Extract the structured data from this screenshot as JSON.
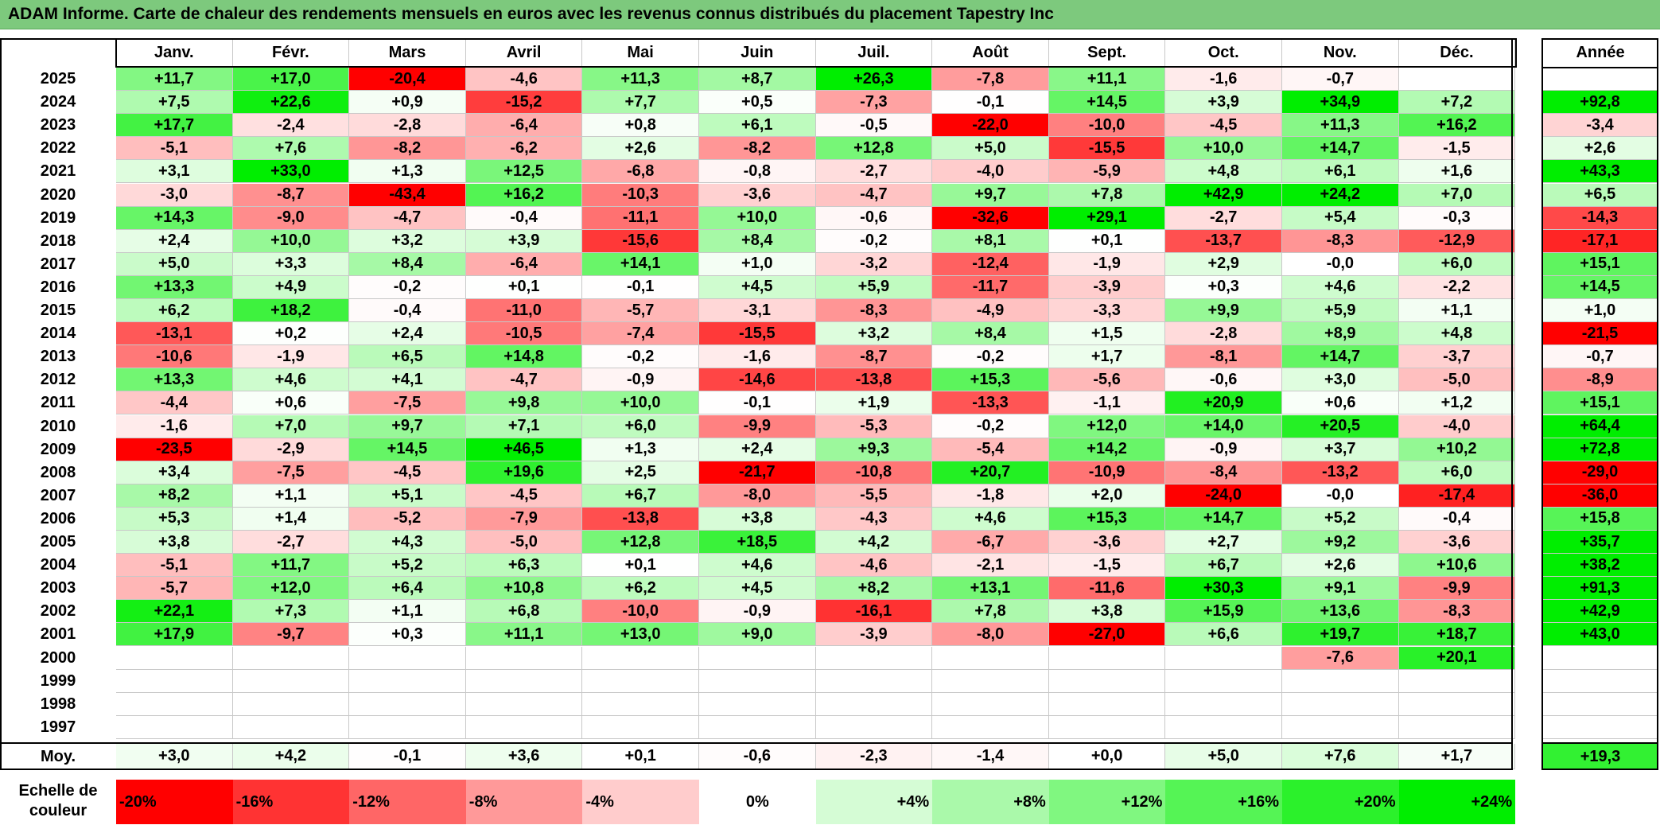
{
  "title": "ADAM Informe. Carte de chaleur des rendements mensuels en euros avec les revenus connus distribués du placement Tapestry Inc",
  "colors": {
    "title_bg": "#7dc97d",
    "neg_max": "#ff0000",
    "pos_max": "#00ee00",
    "neutral": "#ffffff"
  },
  "chart_data": {
    "type": "heatmap",
    "title": "ADAM Informe. Carte de chaleur des rendements mensuels en euros avec les revenus connus distribués du placement Tapestry Inc",
    "months": [
      "Janv.",
      "Févr.",
      "Mars",
      "Avril",
      "Mai",
      "Juin",
      "Juil.",
      "Août",
      "Sept.",
      "Oct.",
      "Nov.",
      "Déc."
    ],
    "annual_header": "Année",
    "average_label": "Moy.",
    "rows": [
      {
        "year": "2025",
        "values": [
          "+11,7",
          "+17,0",
          "-20,4",
          "-4,6",
          "+11,3",
          "+8,7",
          "+26,3",
          "-7,8",
          "+11,1",
          "-1,6",
          "-0,7",
          ""
        ],
        "annual": ""
      },
      {
        "year": "2024",
        "values": [
          "+7,5",
          "+22,6",
          "+0,9",
          "-15,2",
          "+7,7",
          "+0,5",
          "-7,3",
          "-0,1",
          "+14,5",
          "+3,9",
          "+34,9",
          "+7,2"
        ],
        "annual": "+92,8"
      },
      {
        "year": "2023",
        "values": [
          "+17,7",
          "-2,4",
          "-2,8",
          "-6,4",
          "+0,8",
          "+6,1",
          "-0,5",
          "-22,0",
          "-10,0",
          "-4,5",
          "+11,3",
          "+16,2"
        ],
        "annual": "-3,4"
      },
      {
        "year": "2022",
        "values": [
          "-5,1",
          "+7,6",
          "-8,2",
          "-6,2",
          "+2,6",
          "-8,2",
          "+12,8",
          "+5,0",
          "-15,5",
          "+10,0",
          "+14,7",
          "-1,5"
        ],
        "annual": "+2,6"
      },
      {
        "year": "2021",
        "values": [
          "+3,1",
          "+33,0",
          "+1,3",
          "+12,5",
          "-6,8",
          "-0,8",
          "-2,7",
          "-4,0",
          "-5,9",
          "+4,8",
          "+6,1",
          "+1,6"
        ],
        "annual": "+43,3"
      },
      {
        "year": "2020",
        "values": [
          "-3,0",
          "-8,7",
          "-43,4",
          "+16,2",
          "-10,3",
          "-3,6",
          "-4,7",
          "+9,7",
          "+7,8",
          "+42,9",
          "+24,2",
          "+7,0"
        ],
        "annual": "+6,5"
      },
      {
        "year": "2019",
        "values": [
          "+14,3",
          "-9,0",
          "-4,7",
          "-0,4",
          "-11,1",
          "+10,0",
          "-0,6",
          "-32,6",
          "+29,1",
          "-2,7",
          "+5,4",
          "-0,3"
        ],
        "annual": "-14,3"
      },
      {
        "year": "2018",
        "values": [
          "+2,4",
          "+10,0",
          "+3,2",
          "+3,9",
          "-15,6",
          "+8,4",
          "-0,2",
          "+8,1",
          "+0,1",
          "-13,7",
          "-8,3",
          "-12,9"
        ],
        "annual": "-17,1"
      },
      {
        "year": "2017",
        "values": [
          "+5,0",
          "+3,3",
          "+8,4",
          "-6,4",
          "+14,1",
          "+1,0",
          "-3,2",
          "-12,4",
          "-1,9",
          "+2,9",
          "-0,0",
          "+6,0"
        ],
        "annual": "+15,1"
      },
      {
        "year": "2016",
        "values": [
          "+13,3",
          "+4,9",
          "-0,2",
          "+0,1",
          "-0,1",
          "+4,5",
          "+5,9",
          "-11,7",
          "-3,9",
          "+0,3",
          "+4,6",
          "-2,2"
        ],
        "annual": "+14,5"
      },
      {
        "year": "2015",
        "values": [
          "+6,2",
          "+18,2",
          "-0,4",
          "-11,0",
          "-5,7",
          "-3,1",
          "-8,3",
          "-4,9",
          "-3,3",
          "+9,9",
          "+5,9",
          "+1,1"
        ],
        "annual": "+1,0"
      },
      {
        "year": "2014",
        "values": [
          "-13,1",
          "+0,2",
          "+2,4",
          "-10,5",
          "-7,4",
          "-15,5",
          "+3,2",
          "+8,4",
          "+1,5",
          "-2,8",
          "+8,9",
          "+4,8"
        ],
        "annual": "-21,5"
      },
      {
        "year": "2013",
        "values": [
          "-10,6",
          "-1,9",
          "+6,5",
          "+14,8",
          "-0,2",
          "-1,6",
          "-8,7",
          "-0,2",
          "+1,7",
          "-8,1",
          "+14,7",
          "-3,7"
        ],
        "annual": "-0,7"
      },
      {
        "year": "2012",
        "values": [
          "+13,3",
          "+4,6",
          "+4,1",
          "-4,7",
          "-0,9",
          "-14,6",
          "-13,8",
          "+15,3",
          "-5,6",
          "-0,6",
          "+3,0",
          "-5,0"
        ],
        "annual": "-8,9"
      },
      {
        "year": "2011",
        "values": [
          "-4,4",
          "+0,6",
          "-7,5",
          "+9,8",
          "+10,0",
          "-0,1",
          "+1,9",
          "-13,3",
          "-1,1",
          "+20,9",
          "+0,6",
          "+1,2"
        ],
        "annual": "+15,1"
      },
      {
        "year": "2010",
        "values": [
          "-1,6",
          "+7,0",
          "+9,7",
          "+7,1",
          "+6,0",
          "-9,9",
          "-5,3",
          "-0,2",
          "+12,0",
          "+14,0",
          "+20,5",
          "-4,0"
        ],
        "annual": "+64,4"
      },
      {
        "year": "2009",
        "values": [
          "-23,5",
          "-2,9",
          "+14,5",
          "+46,5",
          "+1,3",
          "+2,4",
          "+9,3",
          "-5,4",
          "+14,2",
          "-0,9",
          "+3,7",
          "+10,2"
        ],
        "annual": "+72,8"
      },
      {
        "year": "2008",
        "values": [
          "+3,4",
          "-7,5",
          "-4,5",
          "+19,6",
          "+2,5",
          "-21,7",
          "-10,8",
          "+20,7",
          "-10,9",
          "-8,4",
          "-13,2",
          "+6,0"
        ],
        "annual": "-29,0"
      },
      {
        "year": "2007",
        "values": [
          "+8,2",
          "+1,1",
          "+5,1",
          "-4,5",
          "+6,7",
          "-8,0",
          "-5,5",
          "-1,8",
          "+2,0",
          "-24,0",
          "-0,0",
          "-17,4"
        ],
        "annual": "-36,0"
      },
      {
        "year": "2006",
        "values": [
          "+5,3",
          "+1,4",
          "-5,2",
          "-7,9",
          "-13,8",
          "+3,8",
          "-4,3",
          "+4,6",
          "+15,3",
          "+14,7",
          "+5,2",
          "-0,4"
        ],
        "annual": "+15,8"
      },
      {
        "year": "2005",
        "values": [
          "+3,8",
          "-2,7",
          "+4,3",
          "-5,0",
          "+12,8",
          "+18,5",
          "+4,2",
          "-6,7",
          "-3,6",
          "+2,7",
          "+9,2",
          "-3,6"
        ],
        "annual": "+35,7"
      },
      {
        "year": "2004",
        "values": [
          "-5,1",
          "+11,7",
          "+5,2",
          "+6,3",
          "+0,1",
          "+4,6",
          "-4,6",
          "-2,1",
          "-1,5",
          "+6,7",
          "+2,6",
          "+10,6"
        ],
        "annual": "+38,2"
      },
      {
        "year": "2003",
        "values": [
          "-5,7",
          "+12,0",
          "+6,4",
          "+10,8",
          "+6,2",
          "+4,5",
          "+8,2",
          "+13,1",
          "-11,6",
          "+30,3",
          "+9,1",
          "-9,9"
        ],
        "annual": "+91,3"
      },
      {
        "year": "2002",
        "values": [
          "+22,1",
          "+7,3",
          "+1,1",
          "+6,8",
          "-10,0",
          "-0,9",
          "-16,1",
          "+7,8",
          "+3,8",
          "+15,9",
          "+13,6",
          "-8,3"
        ],
        "annual": "+42,9"
      },
      {
        "year": "2001",
        "values": [
          "+17,9",
          "-9,7",
          "+0,3",
          "+11,1",
          "+13,0",
          "+9,0",
          "-3,9",
          "-8,0",
          "-27,0",
          "+6,6",
          "+19,7",
          "+18,7"
        ],
        "annual": "+43,0"
      },
      {
        "year": "2000",
        "values": [
          "",
          "",
          "",
          "",
          "",
          "",
          "",
          "",
          "",
          "",
          "-7,6",
          "+20,1"
        ],
        "annual": ""
      },
      {
        "year": "1999",
        "values": [
          "",
          "",
          "",
          "",
          "",
          "",
          "",
          "",
          "",
          "",
          "",
          ""
        ],
        "annual": ""
      },
      {
        "year": "1998",
        "values": [
          "",
          "",
          "",
          "",
          "",
          "",
          "",
          "",
          "",
          "",
          "",
          ""
        ],
        "annual": ""
      },
      {
        "year": "1997",
        "values": [
          "",
          "",
          "",
          "",
          "",
          "",
          "",
          "",
          "",
          "",
          "",
          ""
        ],
        "annual": ""
      }
    ],
    "averages": [
      "+3,0",
      "+4,2",
      "-0,1",
      "+3,6",
      "+0,1",
      "-0,6",
      "-2,3",
      "-1,4",
      "+0,0",
      "+5,0",
      "+7,6",
      "+1,7"
    ],
    "average_annual": "+19,3",
    "scale_label": "Echelle de couleur",
    "scale": [
      {
        "label": "-20%",
        "value": -20
      },
      {
        "label": "-16%",
        "value": -16
      },
      {
        "label": "-12%",
        "value": -12
      },
      {
        "label": "-8%",
        "value": -8
      },
      {
        "label": "-4%",
        "value": -4
      },
      {
        "label": "0%",
        "value": 0
      },
      {
        "label": "+4%",
        "value": 4
      },
      {
        "label": "+8%",
        "value": 8
      },
      {
        "label": "+12%",
        "value": 12
      },
      {
        "label": "+16%",
        "value": 16
      },
      {
        "label": "+20%",
        "value": 20
      },
      {
        "label": "+24%",
        "value": 24
      }
    ]
  }
}
